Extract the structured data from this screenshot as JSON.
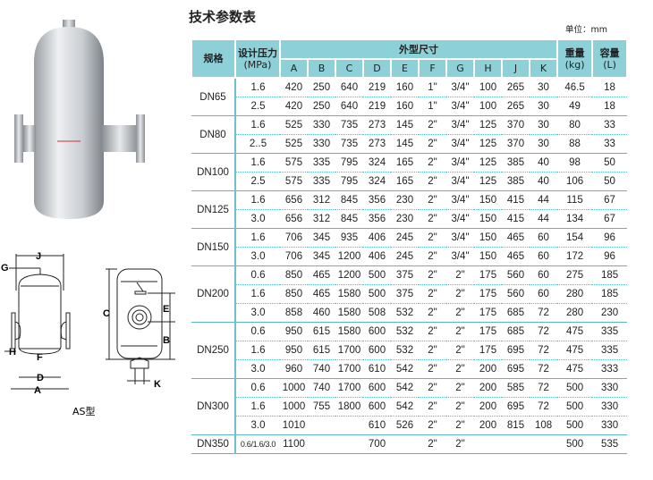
{
  "title": "技术参数表",
  "unit": "单位：mm",
  "model_label": "AS型",
  "colors": {
    "header_bg": "#8ed0d8",
    "rule": "#59b6c6"
  },
  "drawing_labels": {
    "A": "A",
    "B": "B",
    "C": "C",
    "D": "D",
    "E": "E",
    "F": "F",
    "G": "G",
    "H": "H",
    "J": "J",
    "K": "K"
  },
  "headers": {
    "spec": "规格",
    "pressure": "设计压力",
    "pressure_unit": "(MPa)",
    "dims": "外型尺寸",
    "dim_cols": [
      "A",
      "B",
      "C",
      "D",
      "E",
      "F",
      "G",
      "H",
      "J",
      "K"
    ],
    "weight": "重量",
    "weight_unit": "(kg)",
    "volume": "容量",
    "volume_unit": "(L)"
  },
  "groups": [
    {
      "spec": "DN65",
      "rows": [
        [
          "1.6",
          "420",
          "250",
          "640",
          "219",
          "160",
          "1\"",
          "3/4\"",
          "100",
          "265",
          "30",
          "46.5",
          "18"
        ],
        [
          "2.5",
          "420",
          "250",
          "640",
          "219",
          "160",
          "1\"",
          "3/4\"",
          "100",
          "265",
          "30",
          "49",
          "18"
        ]
      ]
    },
    {
      "spec": "DN80",
      "rows": [
        [
          "1.6",
          "525",
          "330",
          "735",
          "273",
          "145",
          "2\"",
          "3/4\"",
          "125",
          "370",
          "30",
          "80",
          "33"
        ],
        [
          "2..5",
          "525",
          "330",
          "735",
          "273",
          "145",
          "2\"",
          "3/4\"",
          "125",
          "370",
          "30",
          "88",
          "33"
        ]
      ]
    },
    {
      "spec": "DN100",
      "rows": [
        [
          "1.6",
          "575",
          "335",
          "795",
          "324",
          "165",
          "2\"",
          "3/4\"",
          "125",
          "385",
          "40",
          "98",
          "50"
        ],
        [
          "2.5",
          "575",
          "335",
          "795",
          "324",
          "165",
          "2\"",
          "3/4\"",
          "125",
          "385",
          "40",
          "106",
          "50"
        ]
      ]
    },
    {
      "spec": "DN125",
      "rows": [
        [
          "1.6",
          "656",
          "312",
          "845",
          "356",
          "230",
          "2\"",
          "3/4\"",
          "150",
          "415",
          "44",
          "115",
          "67"
        ],
        [
          "3.0",
          "656",
          "312",
          "845",
          "356",
          "230",
          "2\"",
          "3/4\"",
          "150",
          "415",
          "44",
          "134",
          "67"
        ]
      ]
    },
    {
      "spec": "DN150",
      "rows": [
        [
          "1.6",
          "706",
          "345",
          "935",
          "406",
          "245",
          "2\"",
          "3/4\"",
          "150",
          "465",
          "60",
          "154",
          "96"
        ],
        [
          "3.0",
          "706",
          "345",
          "1200",
          "406",
          "245",
          "2\"",
          "3/4\"",
          "150",
          "465",
          "60",
          "172",
          "96"
        ]
      ]
    },
    {
      "spec": "DN200",
      "rows": [
        [
          "0.6",
          "850",
          "465",
          "1200",
          "500",
          "375",
          "2\"",
          "2\"",
          "175",
          "560",
          "60",
          "275",
          "185"
        ],
        [
          "1.6",
          "850",
          "465",
          "1580",
          "500",
          "375",
          "2\"",
          "2\"",
          "175",
          "560",
          "60",
          "280",
          "185"
        ],
        [
          "3.0",
          "858",
          "460",
          "1580",
          "508",
          "532",
          "2\"",
          "2\"",
          "175",
          "685",
          "72",
          "280",
          "230"
        ]
      ]
    },
    {
      "spec": "DN250",
      "rows": [
        [
          "0.6",
          "950",
          "615",
          "1580",
          "600",
          "532",
          "2\"",
          "2\"",
          "175",
          "685",
          "72",
          "475",
          "335"
        ],
        [
          "1.6",
          "950",
          "615",
          "1700",
          "600",
          "532",
          "2\"",
          "2\"",
          "175",
          "695",
          "72",
          "475",
          "335"
        ],
        [
          "3.0",
          "960",
          "740",
          "1700",
          "610",
          "542",
          "2\"",
          "2\"",
          "200",
          "695",
          "72",
          "475",
          "333"
        ]
      ]
    },
    {
      "spec": "DN300",
      "rows": [
        [
          "0.6",
          "1000",
          "740",
          "1700",
          "600",
          "542",
          "2\"",
          "2\"",
          "200",
          "585",
          "72",
          "500",
          "330"
        ],
        [
          "1.6",
          "1000",
          "755",
          "1800",
          "600",
          "542",
          "2\"",
          "2\"",
          "200",
          "695",
          "72",
          "500",
          "330"
        ],
        [
          "3.0",
          "1010",
          "",
          "",
          "610",
          "526",
          "2\"",
          "2\"",
          "200",
          "815",
          "108",
          "500",
          "330"
        ]
      ]
    },
    {
      "spec": "DN350",
      "rows": [
        [
          "0.6/1.6/3.0",
          "1100",
          "",
          "",
          "700",
          "",
          "2\"",
          "2\"",
          "",
          "",
          "",
          "500",
          "535"
        ]
      ]
    }
  ]
}
